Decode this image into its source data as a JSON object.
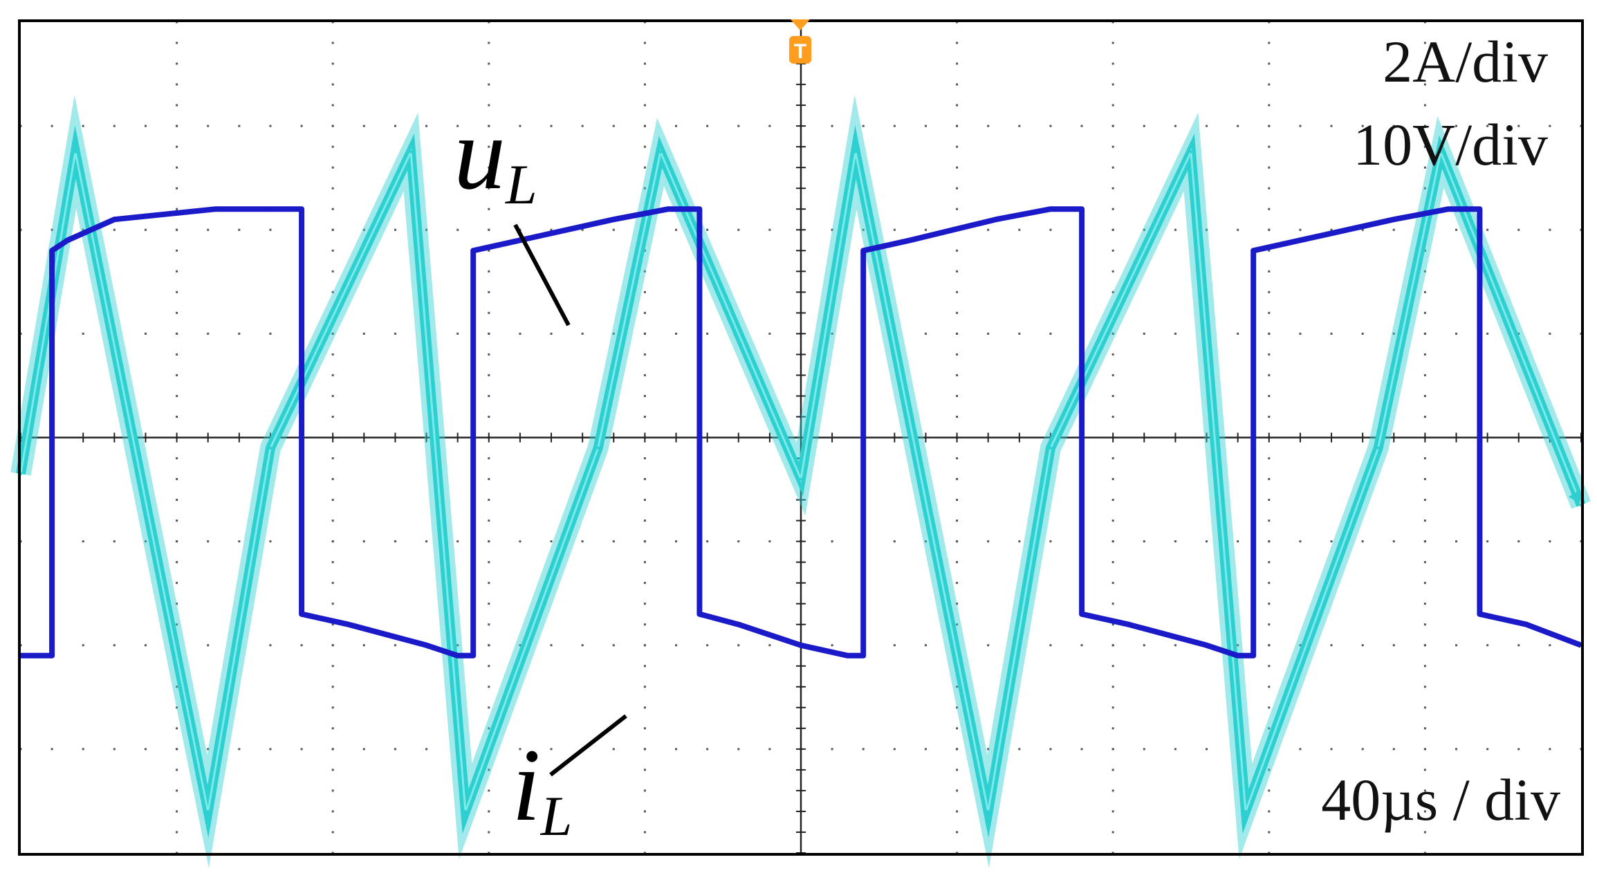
{
  "chart_data": {
    "type": "line",
    "title": "",
    "xlabel": "",
    "ylabel": "",
    "scales": {
      "current": "2A/div",
      "voltage": "10V/div",
      "time": "40µs / div"
    },
    "trigger_marker": "T",
    "grid": true,
    "divisions": {
      "x": 10,
      "y": 8
    },
    "xlim": [
      -200,
      200
    ],
    "ylim_current": [
      -8,
      8
    ],
    "ylim_voltage": [
      -40,
      40
    ],
    "x_unit": "µs",
    "series": [
      {
        "name": "u",
        "subscript": "L",
        "unit": "V",
        "color": "#1a1ac8",
        "x": [
          -200,
          -192,
          -192,
          -188,
          -176,
          -150,
          -136,
          -128,
          -128,
          -116,
          -96,
          -88,
          -84,
          -84,
          -72,
          -48,
          -34,
          -26,
          -26,
          -16,
          0,
          12,
          16,
          16,
          28,
          50,
          64,
          72,
          72,
          84,
          104,
          112,
          116,
          116,
          128,
          152,
          166,
          174,
          174,
          186,
          200
        ],
        "y": [
          -21,
          -21,
          18,
          19,
          21,
          22,
          22,
          22,
          -17,
          -18,
          -20,
          -21,
          -21,
          18,
          19,
          21,
          22,
          22,
          -17,
          -18,
          -20,
          -21,
          -21,
          18,
          19,
          21,
          22,
          22,
          -17,
          -18,
          -20,
          -21,
          -21,
          18,
          19,
          21,
          22,
          22,
          -17,
          -18,
          -20
        ]
      },
      {
        "name": "i",
        "subscript": "L",
        "unit": "A",
        "color": "#2ecfd0",
        "x": [
          -200,
          -186,
          -152,
          -136,
          -100,
          -86,
          -52,
          -36,
          0,
          14,
          48,
          64,
          100,
          114,
          148,
          164,
          200
        ],
        "y": [
          -0.7,
          5.5,
          -7.2,
          -0.2,
          5.5,
          -7.2,
          -0.2,
          5.5,
          -0.8,
          5.5,
          -7.2,
          -0.2,
          5.5,
          -7.2,
          -0.2,
          5.5,
          -1.3
        ]
      }
    ]
  }
}
